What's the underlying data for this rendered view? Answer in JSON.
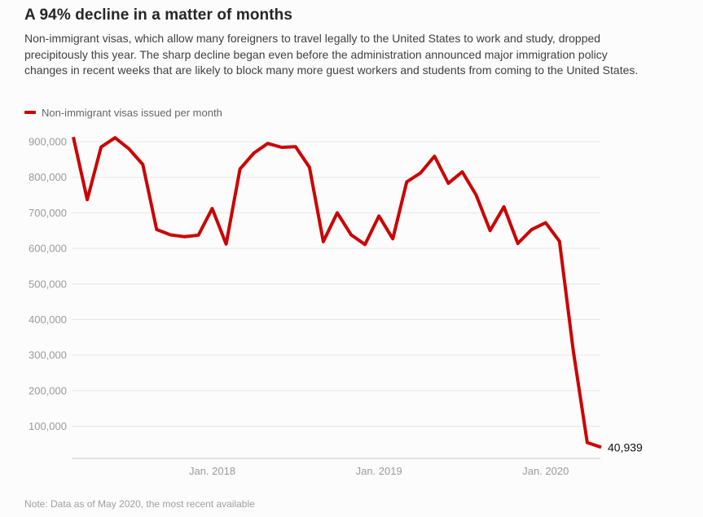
{
  "header": {
    "title": "A 94% decline in a matter of months",
    "description": "Non-immigrant visas, which allow many foreigners to travel legally to the United States to work and study, dropped precipitously this year. The sharp decline began even before the administration announced major immigration policy changes in recent weeks that are likely to block many more guest workers and students from coming to the United States."
  },
  "legend": {
    "label": "Non-immigrant visas issued per month"
  },
  "note": "Note: Data as of May 2020, the most recent available",
  "colors": {
    "line": "#cc0000",
    "grid": "#e6e6e6",
    "axis": "#c9c9c9",
    "tick_text": "#9b9b9b",
    "end_label": "#111111"
  },
  "chart_data": {
    "type": "line",
    "title": "A 94% decline in a matter of months",
    "series_name": "Non-immigrant visas issued per month",
    "x": [
      "Mar 2017",
      "Apr 2017",
      "May 2017",
      "Jun 2017",
      "Jul 2017",
      "Aug 2017",
      "Sep 2017",
      "Oct 2017",
      "Nov 2017",
      "Dec 2017",
      "Jan 2018",
      "Feb 2018",
      "Mar 2018",
      "Apr 2018",
      "May 2018",
      "Jun 2018",
      "Jul 2018",
      "Aug 2018",
      "Sep 2018",
      "Oct 2018",
      "Nov 2018",
      "Dec 2018",
      "Jan 2019",
      "Feb 2019",
      "Mar 2019",
      "Apr 2019",
      "May 2019",
      "Jun 2019",
      "Jul 2019",
      "Aug 2019",
      "Sep 2019",
      "Oct 2019",
      "Nov 2019",
      "Dec 2019",
      "Jan 2020",
      "Feb 2020",
      "Mar 2020",
      "Apr 2020",
      "May 2020"
    ],
    "values": [
      913000,
      737000,
      885000,
      911000,
      880000,
      836000,
      653000,
      638000,
      633000,
      637000,
      712000,
      612000,
      823000,
      868000,
      895000,
      884000,
      886000,
      828000,
      619000,
      700000,
      638000,
      611000,
      691000,
      627000,
      787000,
      812000,
      859000,
      783000,
      815000,
      750000,
      650000,
      717000,
      614000,
      653000,
      672000,
      620000,
      310000,
      54000,
      40939
    ],
    "end_label": "40,939",
    "end_value": 40939,
    "xlabel": "",
    "ylabel": "",
    "y_ticks": [
      100000,
      200000,
      300000,
      400000,
      500000,
      600000,
      700000,
      800000,
      900000
    ],
    "y_tick_labels": [
      "100,000",
      "200,000",
      "300,000",
      "400,000",
      "500,000",
      "600,000",
      "700,000",
      "800,000",
      "900,000"
    ],
    "x_tick_labels": [
      "Jan. 2018",
      "Jan. 2019",
      "Jan. 2020"
    ],
    "x_tick_indices": [
      10,
      22,
      34
    ],
    "ylim": [
      0,
      950000
    ],
    "grid": "horizontal",
    "legend_position": "top-left"
  }
}
